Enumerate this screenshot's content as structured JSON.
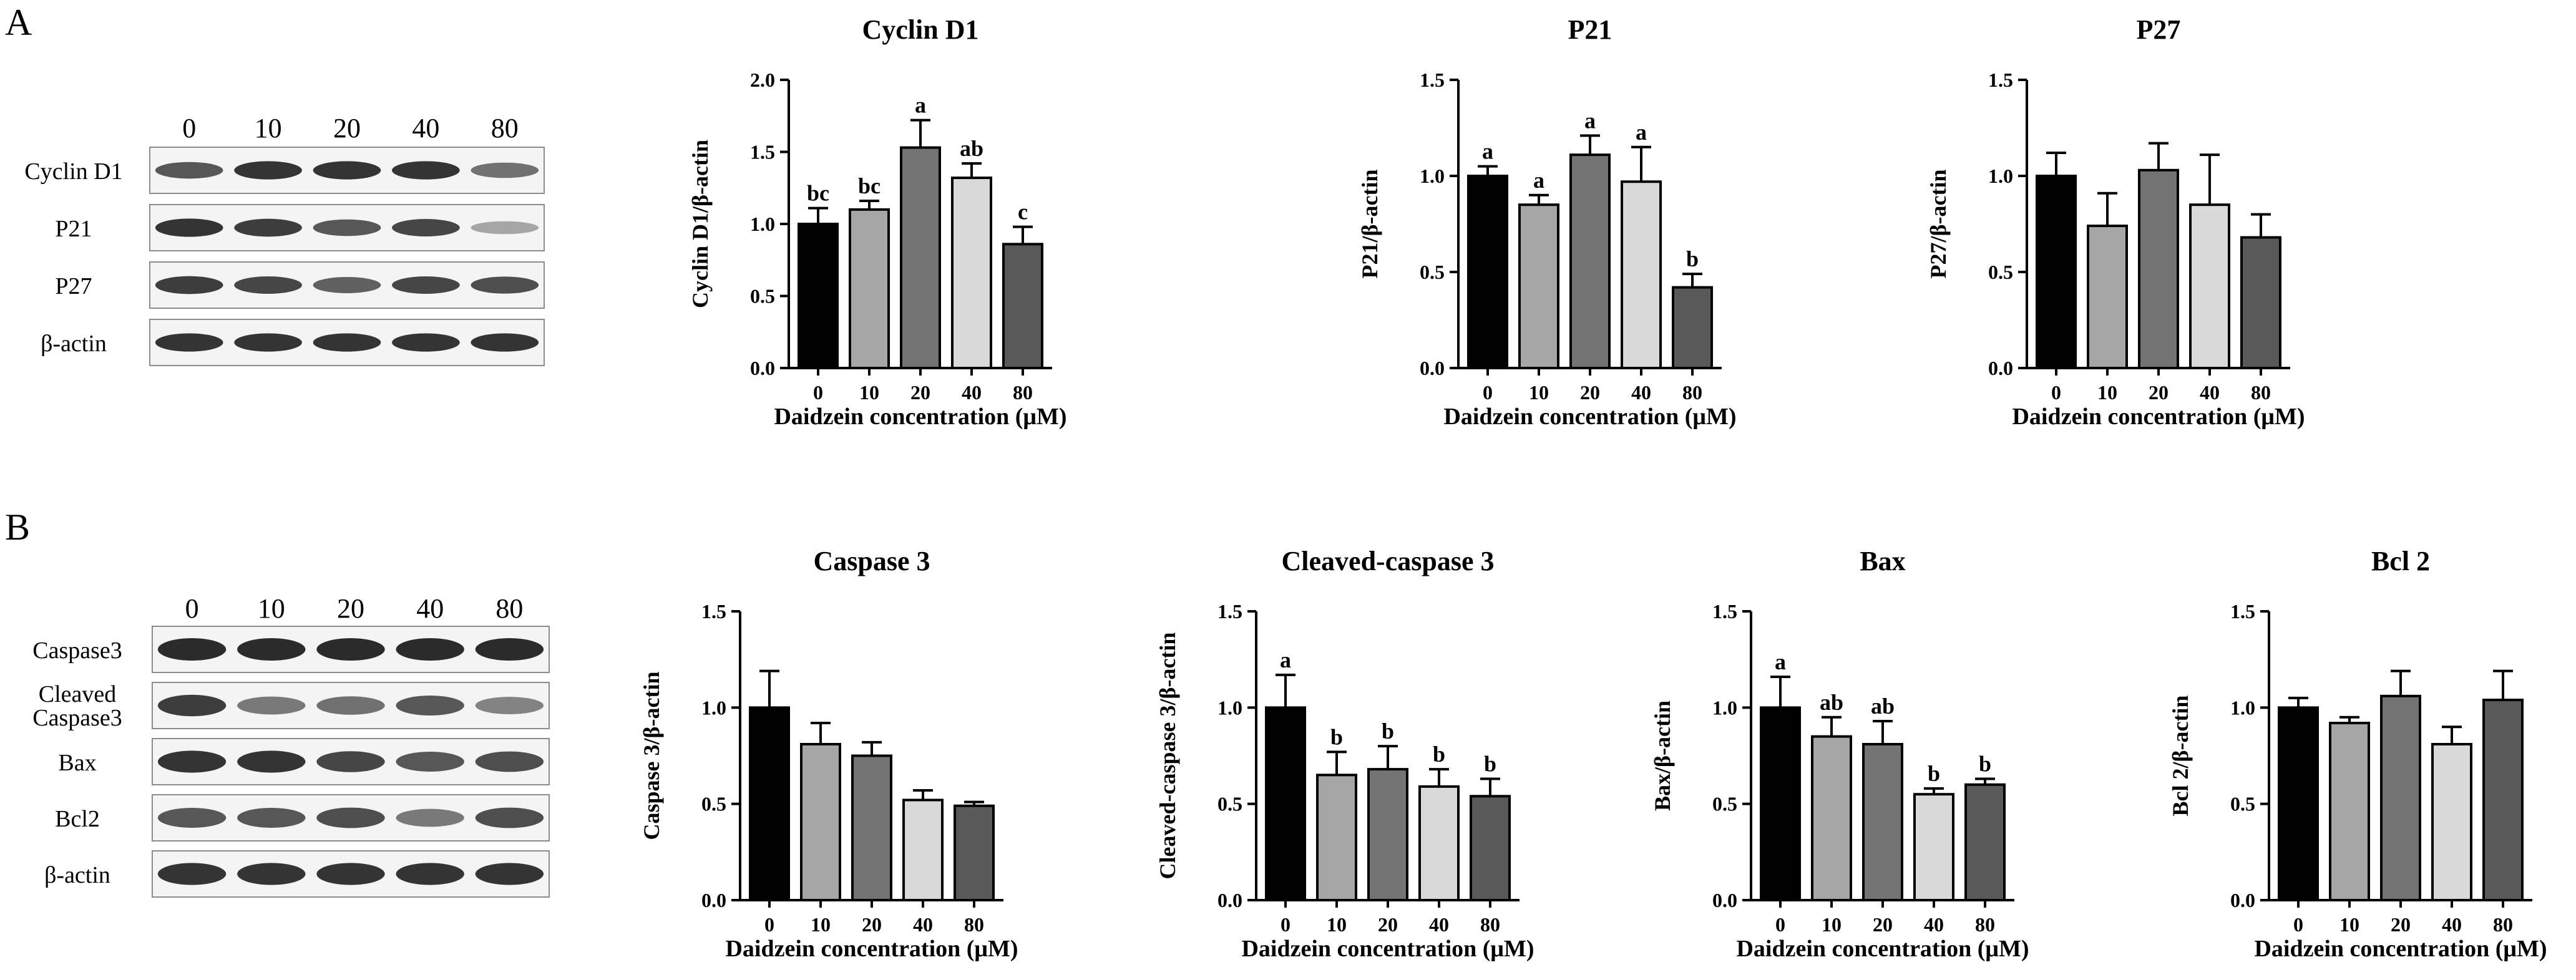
{
  "panels": {
    "A": {
      "letter": "A"
    },
    "B": {
      "letter": "B"
    }
  },
  "blots": {
    "A": {
      "lanes": [
        "0",
        "10",
        "20",
        "40",
        "80"
      ],
      "rows": [
        {
          "label": "Cyclin D1",
          "intensity": [
            0.75,
            0.95,
            0.95,
            0.95,
            0.6
          ]
        },
        {
          "label": "P21",
          "intensity": [
            0.95,
            0.9,
            0.75,
            0.85,
            0.3
          ]
        },
        {
          "label": "P27",
          "intensity": [
            0.9,
            0.85,
            0.7,
            0.85,
            0.8
          ]
        },
        {
          "label": "β-actin",
          "intensity": [
            0.95,
            0.95,
            0.95,
            0.95,
            0.95
          ]
        }
      ]
    },
    "B": {
      "lanes": [
        "0",
        "10",
        "20",
        "40",
        "80"
      ],
      "rows": [
        {
          "label": "Caspase3",
          "label2": "",
          "intensity": [
            1,
            1,
            1,
            1,
            1
          ]
        },
        {
          "label": "Cleaved",
          "label2": "Caspase3",
          "intensity": [
            0.9,
            0.55,
            0.6,
            0.75,
            0.5
          ]
        },
        {
          "label": "Bax",
          "label2": "",
          "intensity": [
            0.95,
            0.95,
            0.85,
            0.75,
            0.8
          ]
        },
        {
          "label": "Bcl2",
          "label2": "",
          "intensity": [
            0.75,
            0.75,
            0.8,
            0.55,
            0.8
          ]
        },
        {
          "label": "β-actin",
          "label2": "",
          "intensity": [
            0.95,
            0.95,
            0.95,
            0.95,
            0.95
          ]
        }
      ]
    }
  },
  "bar_colors": [
    "#000000",
    "#a6a6a6",
    "#737373",
    "#d9d9d9",
    "#595959"
  ],
  "chart_data": [
    {
      "type": "bar",
      "title": "Cyclin D1",
      "xlabel": "Daidzein concentration (μM)",
      "ylabel": "Cyclin D1/β-actin",
      "categories": [
        "0",
        "10",
        "20",
        "40",
        "80"
      ],
      "values": [
        1.0,
        1.1,
        1.53,
        1.32,
        0.86
      ],
      "errors": [
        0.11,
        0.06,
        0.19,
        0.1,
        0.12
      ],
      "letters": [
        "bc",
        "bc",
        "a",
        "ab",
        "c"
      ],
      "ylim": [
        0,
        2.0
      ],
      "yticks": [
        "0.0",
        "0.5",
        "1.0",
        "1.5",
        "2.0"
      ]
    },
    {
      "type": "bar",
      "title": "P21",
      "xlabel": "Daidzein concentration (μM)",
      "ylabel": "P21/β-actin",
      "categories": [
        "0",
        "10",
        "20",
        "40",
        "80"
      ],
      "values": [
        1.0,
        0.85,
        1.11,
        0.97,
        0.42
      ],
      "errors": [
        0.05,
        0.05,
        0.1,
        0.18,
        0.07
      ],
      "letters": [
        "a",
        "a",
        "a",
        "a",
        "b"
      ],
      "ylim": [
        0,
        1.5
      ],
      "yticks": [
        "0.0",
        "0.5",
        "1.0",
        "1.5"
      ]
    },
    {
      "type": "bar",
      "title": "P27",
      "xlabel": "Daidzein concentration (μM)",
      "ylabel": "P27/β-actin",
      "categories": [
        "0",
        "10",
        "20",
        "40",
        "80"
      ],
      "values": [
        1.0,
        0.74,
        1.03,
        0.85,
        0.68
      ],
      "errors": [
        0.12,
        0.17,
        0.14,
        0.26,
        0.12
      ],
      "letters": [
        "",
        "",
        "",
        "",
        ""
      ],
      "ylim": [
        0,
        1.5
      ],
      "yticks": [
        "0.0",
        "0.5",
        "1.0",
        "1.5"
      ]
    },
    {
      "type": "bar",
      "title": "Caspase 3",
      "xlabel": "Daidzein concentration (μM)",
      "ylabel": "Caspase 3/β-actin",
      "categories": [
        "0",
        "10",
        "20",
        "40",
        "80"
      ],
      "values": [
        1.0,
        0.81,
        0.75,
        0.52,
        0.49
      ],
      "errors": [
        0.19,
        0.11,
        0.07,
        0.05,
        0.02
      ],
      "letters": [
        "",
        "",
        "",
        "",
        ""
      ],
      "ylim": [
        0,
        1.5
      ],
      "yticks": [
        "0.0",
        "0.5",
        "1.0",
        "1.5"
      ]
    },
    {
      "type": "bar",
      "title": "Cleaved-caspase 3",
      "xlabel": "Daidzein concentration (μM)",
      "ylabel": "Cleaved-caspase 3/β-actin",
      "categories": [
        "0",
        "10",
        "20",
        "40",
        "80"
      ],
      "values": [
        1.0,
        0.65,
        0.68,
        0.59,
        0.54
      ],
      "errors": [
        0.17,
        0.12,
        0.12,
        0.09,
        0.09
      ],
      "letters": [
        "a",
        "b",
        "b",
        "b",
        "b"
      ],
      "ylim": [
        0,
        1.5
      ],
      "yticks": [
        "0.0",
        "0.5",
        "1.0",
        "1.5"
      ]
    },
    {
      "type": "bar",
      "title": "Bax",
      "xlabel": "Daidzein concentration (μM)",
      "ylabel": "Bax/β-actin",
      "categories": [
        "0",
        "10",
        "20",
        "40",
        "80"
      ],
      "values": [
        1.0,
        0.85,
        0.81,
        0.55,
        0.6
      ],
      "errors": [
        0.16,
        0.1,
        0.12,
        0.03,
        0.03
      ],
      "letters": [
        "a",
        "ab",
        "ab",
        "b",
        "b"
      ],
      "ylim": [
        0,
        1.5
      ],
      "yticks": [
        "0.0",
        "0.5",
        "1.0",
        "1.5"
      ]
    },
    {
      "type": "bar",
      "title": "Bcl 2",
      "xlabel": "Daidzein concentration (μM)",
      "ylabel": "Bcl 2/β-actin",
      "categories": [
        "0",
        "10",
        "20",
        "40",
        "80"
      ],
      "values": [
        1.0,
        0.92,
        1.06,
        0.81,
        1.04
      ],
      "errors": [
        0.05,
        0.03,
        0.13,
        0.09,
        0.15
      ],
      "letters": [
        "",
        "",
        "",
        "",
        ""
      ],
      "ylim": [
        0,
        1.5
      ],
      "yticks": [
        "0.0",
        "0.5",
        "1.0",
        "1.5"
      ]
    }
  ]
}
